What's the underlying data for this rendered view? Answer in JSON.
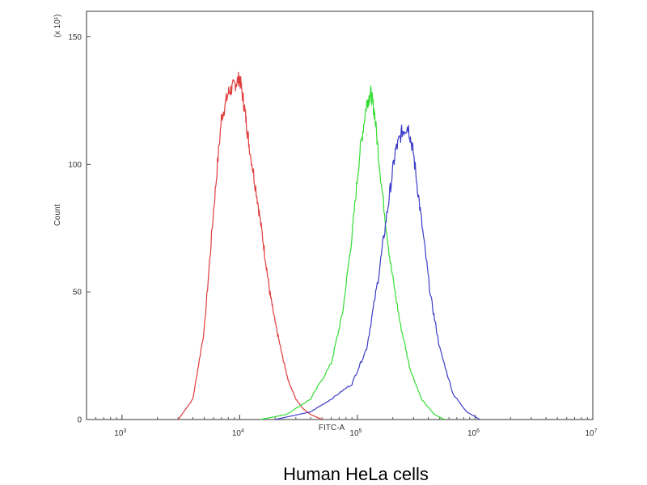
{
  "chart_data": {
    "type": "line",
    "caption": "Human HeLa cells",
    "xlabel": "FITC-A",
    "ylabel": "Count",
    "y_multiplier_label": "(x 10¹)",
    "x_scale": "log",
    "xlim": [
      500,
      10000000
    ],
    "ylim": [
      0,
      160
    ],
    "x_ticks": [
      {
        "value": 1000,
        "base": "10",
        "exp": "3"
      },
      {
        "value": 10000,
        "base": "10",
        "exp": "4"
      },
      {
        "value": 100000,
        "base": "10",
        "exp": "5"
      },
      {
        "value": 1000000,
        "base": "10",
        "exp": "6"
      },
      {
        "value": 10000000,
        "base": "10",
        "exp": "7"
      }
    ],
    "y_ticks": [
      0,
      50,
      100,
      150
    ],
    "grid": false,
    "series": [
      {
        "color": "#e03c3c",
        "x": [
          3000,
          4000,
          5000,
          6000,
          7000,
          8000,
          9000,
          10000,
          11000,
          12000,
          14000,
          16000,
          18000,
          20000,
          23000,
          26000,
          30000,
          35000,
          40000,
          50000
        ],
        "y": [
          0,
          8,
          35,
          82,
          118,
          128,
          131,
          134,
          122,
          108,
          88,
          68,
          50,
          38,
          25,
          15,
          8,
          4,
          2,
          0
        ]
      },
      {
        "color": "#33dd33",
        "x": [
          15000,
          25000,
          40000,
          60000,
          75000,
          90000,
          105000,
          120000,
          130000,
          140000,
          160000,
          190000,
          230000,
          280000,
          350000,
          450000,
          550000
        ],
        "y": [
          0,
          2,
          8,
          22,
          42,
          72,
          105,
          124,
          128,
          120,
          92,
          62,
          38,
          20,
          8,
          2,
          0
        ]
      },
      {
        "color": "#3c3cc8",
        "x": [
          20000,
          40000,
          60000,
          90000,
          120000,
          150000,
          180000,
          210000,
          240000,
          270000,
          300000,
          350000,
          420000,
          500000,
          650000,
          850000,
          1100000
        ],
        "y": [
          0,
          3,
          8,
          14,
          28,
          55,
          82,
          105,
          113,
          115,
          104,
          78,
          48,
          28,
          10,
          3,
          0
        ]
      }
    ]
  }
}
